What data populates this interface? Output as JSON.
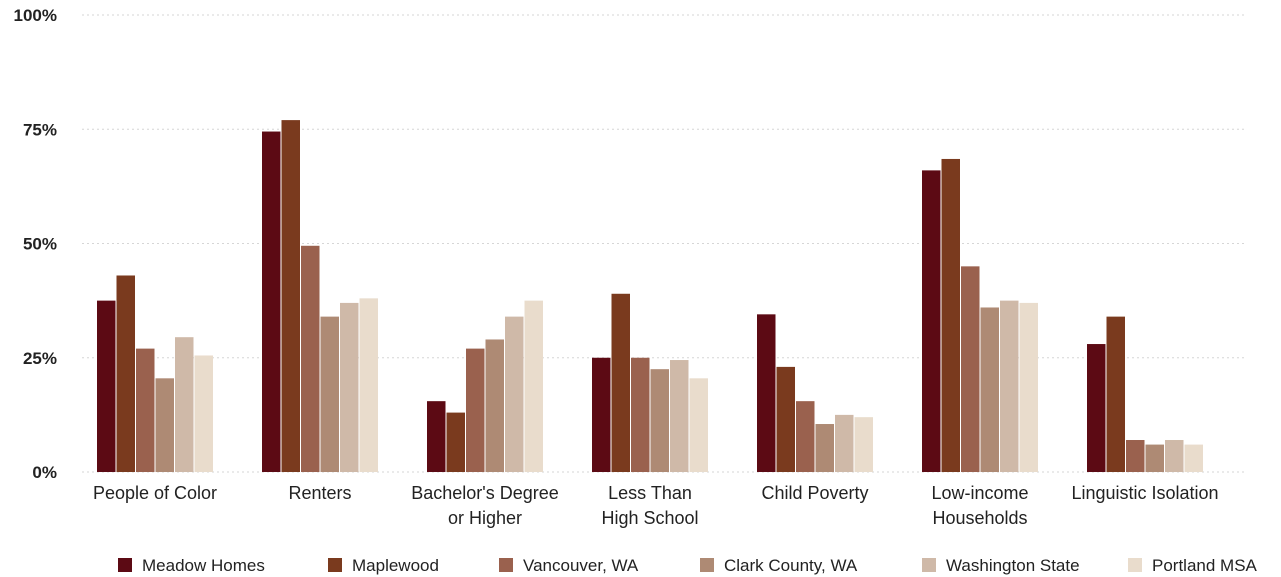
{
  "chart_data": {
    "type": "bar",
    "title": "",
    "xlabel": "",
    "ylabel": "",
    "ylim": [
      0,
      100
    ],
    "yticks": [
      0,
      25,
      50,
      75,
      100
    ],
    "ytick_labels": [
      "0%",
      "25%",
      "50%",
      "75%",
      "100%"
    ],
    "grid": true,
    "legend_position": "bottom",
    "categories": [
      [
        "People of Color"
      ],
      [
        "Renters"
      ],
      [
        "Bachelor's Degree",
        "or Higher"
      ],
      [
        "Less Than",
        "High School"
      ],
      [
        "Child Poverty"
      ],
      [
        "Low-income",
        "Households"
      ],
      [
        "Linguistic Isolation"
      ]
    ],
    "series": [
      {
        "name": "Meadow Homes",
        "color": "#5c0a14",
        "values": [
          37.5,
          74.5,
          15.5,
          25,
          34.5,
          66,
          28
        ]
      },
      {
        "name": "Maplewood",
        "color": "#7a3a1e",
        "values": [
          43,
          77,
          13,
          39,
          23,
          68.5,
          34
        ]
      },
      {
        "name": "Vancouver, WA",
        "color": "#9a614e",
        "values": [
          27,
          49.5,
          27,
          25,
          15.5,
          45,
          7
        ]
      },
      {
        "name": "Clark County, WA",
        "color": "#ae8a74",
        "values": [
          20.5,
          34,
          29,
          22.5,
          10.5,
          36,
          6
        ]
      },
      {
        "name": "Washington State",
        "color": "#cfb9a8",
        "values": [
          29.5,
          37,
          34,
          24.5,
          12.5,
          37.5,
          7
        ]
      },
      {
        "name": "Portland MSA",
        "color": "#e9dccc",
        "values": [
          25.5,
          38,
          37.5,
          20.5,
          12,
          37,
          6
        ]
      }
    ]
  }
}
